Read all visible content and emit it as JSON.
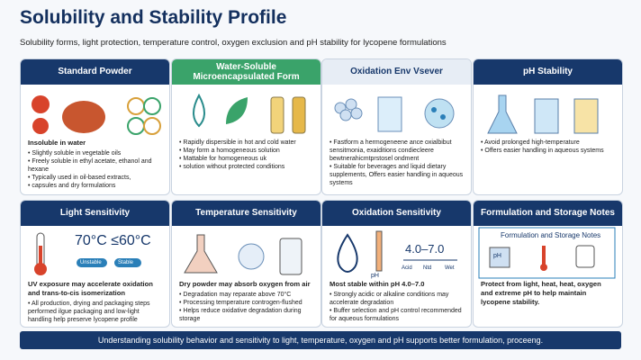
{
  "header": {
    "title": "Solubility and Stability Profile",
    "subtitle": "Solubility forms, light protection, temperature control, oxygen exclusion and pH stability for lycopene formulations"
  },
  "cards": [
    {
      "title": "Standard Powder",
      "lead": "Insoluble in water",
      "points": [
        "Slightly soluble in vegetable oils",
        "Freely soluble in ethyl acetate, ethanol and hexane",
        "Typically used in oil-based extracts,",
        "capsules and dry formulations"
      ]
    },
    {
      "title": "Water-Soluble Microencapsulated Form",
      "points": [
        "Rapidly dispersible in hot and cold water",
        "May form a homogeneous solution",
        "Mattable for homogeneous uk",
        "solution without protected conditions"
      ]
    },
    {
      "title": "Oxidation Env Vsever",
      "points": [
        "Fastform a hermogeneene ance oxialbibut sensitmonia, exaiditions condiecleere bewtnerahicmtprstosel ondment",
        "Suitable for beverages and liquid dietary supplements, Offers easier handling in aqueous systems"
      ]
    },
    {
      "title": "pH Stability",
      "points": [
        "Avoid prolonged high-temperature",
        "Offers easier handling in aqueous systems"
      ]
    },
    {
      "title": "Light Sensitivity",
      "figure_labels": [
        "70°C ≤60°C",
        "Unstable",
        "Stable"
      ],
      "lead": "UV exposure may accelerate oxidation and trans-to-cis isomerization",
      "points": [
        "All production, drying and packaging steps performed ilgue packaging and low-light handling help preserve lycopene profile"
      ]
    },
    {
      "title": "Temperature Sensitivity",
      "lead": "Dry powder may absorb oxygen from air",
      "points": [
        "Degradation may reparate above 70°C",
        "Processing temperature controgen-flushed",
        "Helps reduce oxidative degradation during storage"
      ]
    },
    {
      "title": "Oxidation Sensitivity",
      "figure_labels": [
        "4.0–7.0",
        "pH",
        "Acid",
        "Ntd",
        "Wet"
      ],
      "lead": "Most stable within pH 4.0–7.0",
      "points": [
        "Strongly acidic or alkaline conditions may accelerate degradation",
        "Buffer selection and pH control recommended for aqueous formulations"
      ]
    },
    {
      "title": "Formulation and Storage Notes",
      "figure_labels": [
        "Formulation and Storage Notes",
        "pH"
      ],
      "lead": "Protect from light, heat, heat, oxygen and extreme pH to help maintain lycopene stability."
    }
  ],
  "footer": "Understanding solubility behavior and sensitivity to light, temperature, oxygen and pH supports better formulation, proceeng."
}
